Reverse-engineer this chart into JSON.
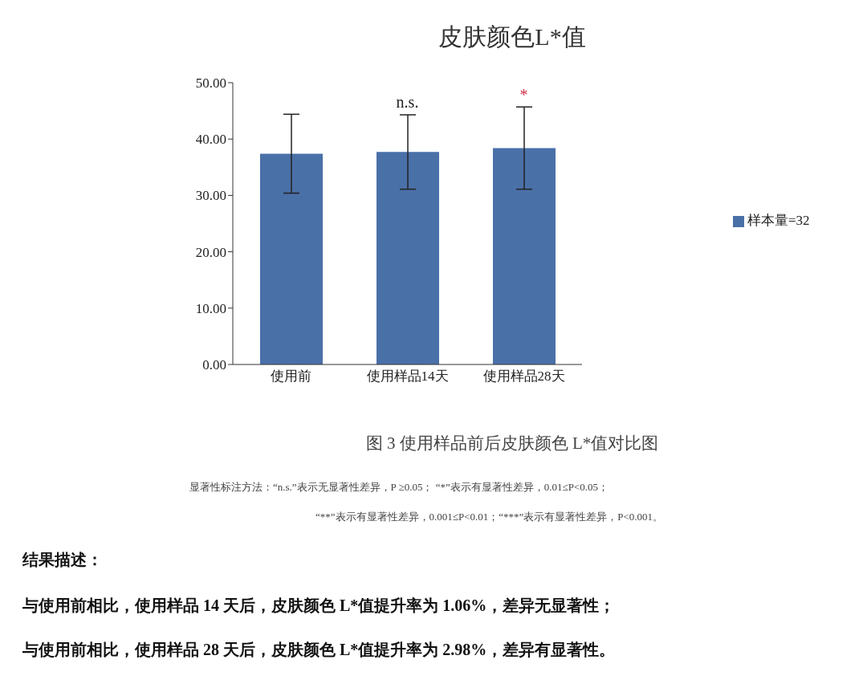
{
  "chart_data": {
    "type": "bar",
    "title": "皮肤颜色L*值",
    "categories": [
      "使用前",
      "使用样品14天",
      "使用样品28天"
    ],
    "series": [
      {
        "name": "样本量=32",
        "color": "#4a70a8",
        "values": [
          37.4,
          37.7,
          38.4
        ],
        "errors": [
          7.0,
          6.6,
          7.3
        ]
      }
    ],
    "ylim": [
      0,
      50
    ],
    "yticks": [
      {
        "value": 0,
        "label": "0.00"
      },
      {
        "value": 10,
        "label": "10.00"
      },
      {
        "value": 20,
        "label": "20.00"
      },
      {
        "value": 30,
        "label": "30.00"
      },
      {
        "value": 40,
        "label": "40.00"
      },
      {
        "value": 50,
        "label": "50.00"
      }
    ],
    "grid": false,
    "legend": "right",
    "annotations": [
      {
        "text": "n.s.",
        "x": "使用样品14天",
        "y": 44.4
      },
      {
        "text": "*",
        "x": "使用样品28天",
        "y": 45.7
      },
      "图 3  使用样品前后皮肤颜色 L*值对比图",
      "显著性标注方法：“n.s.”表示无显著性差异，P ≥0.05；  “*”表示有显著性差异，0.01≤P<0.05；",
      "“**”表示有显著性差异，0.001≤P<0.01；“***”表示有显著性差异，P<0.001。",
      "结果描述：",
      "与使用前相比，使用样品 14 天后，皮肤颜色 L*值提升率为 1.06%，差异无显著性；",
      "与使用前相比，使用样品 28 天后，皮肤颜色 L*值提升率为 2.98%，差异有显著性。"
    ]
  }
}
